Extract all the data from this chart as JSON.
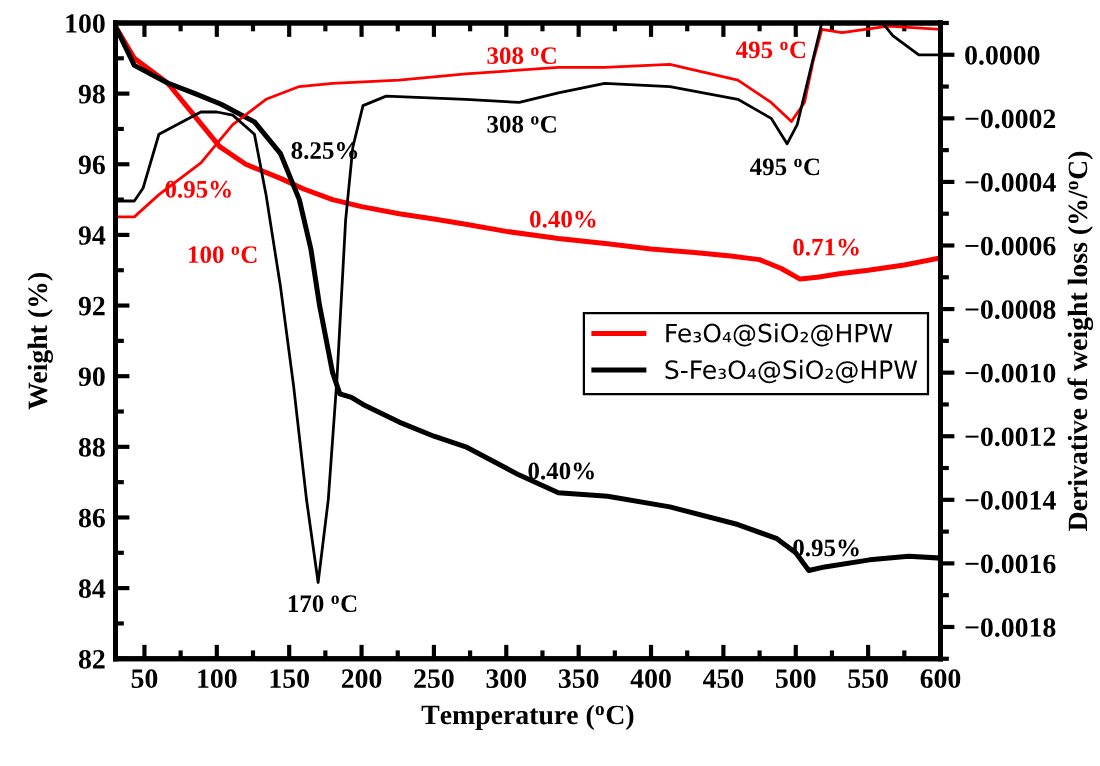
{
  "chart_data": {
    "type": "line",
    "xlabel": "Temperature ($^{o}$C)",
    "ylabel": "Weight (%)",
    "y2label": "Derivative of weight loss (%/$^{o}$C)",
    "series": [
      {
        "name": "Fe₃O₄@SiO₂@HPW",
        "color": "#ff0000",
        "x": [
          30,
          43,
          66,
          88,
          102,
          120,
          144,
          160,
          180,
          200,
          226,
          250,
          272,
          300,
          336,
          370,
          400,
          430,
          455,
          475,
          490,
          503,
          515,
          530,
          550,
          575,
          600
        ],
        "values": [
          99.9,
          99.0,
          98.3,
          97.2,
          96.5,
          96.0,
          95.6,
          95.3,
          95.0,
          94.8,
          94.6,
          94.45,
          94.3,
          94.1,
          93.9,
          93.75,
          93.6,
          93.5,
          93.4,
          93.3,
          93.05,
          92.75,
          92.8,
          92.9,
          93.0,
          93.15,
          93.35
        ]
      },
      {
        "name": "S-Fe₃O₄@SiO₂@HPW",
        "color": "#000000",
        "x": [
          30,
          43,
          66,
          85,
          103,
          126,
          144,
          157,
          165,
          171,
          180,
          185,
          193,
          201,
          226,
          250,
          272,
          309,
          336,
          370,
          413,
          460,
          487,
          500,
          509,
          520,
          551,
          578,
          600
        ],
        "values": [
          99.9,
          98.8,
          98.3,
          98.0,
          97.7,
          97.2,
          96.3,
          95.0,
          93.6,
          92.0,
          90.1,
          89.5,
          89.4,
          89.2,
          88.7,
          88.3,
          88.0,
          87.2,
          86.7,
          86.6,
          86.3,
          85.8,
          85.4,
          85.0,
          84.5,
          84.6,
          84.8,
          84.9,
          84.85
        ]
      },
      {
        "color": "#ff0000",
        "axis": "y2",
        "x": [
          30,
          43,
          60,
          89,
          111,
          134,
          157,
          180,
          226,
          272,
          336,
          368,
          413,
          460,
          483,
          497,
          506,
          512,
          518,
          532,
          564,
          600
        ],
        "values": [
          -0.00051,
          -0.00051,
          -0.00044,
          -0.00034,
          -0.00022,
          -0.00014,
          -0.0001,
          -9e-05,
          -8e-05,
          -6e-05,
          -4e-05,
          -4e-05,
          -3e-05,
          -8e-05,
          -0.00015,
          -0.00021,
          -0.00015,
          -2e-05,
          8e-05,
          7e-05,
          9e-05,
          8e-05
        ]
      },
      {
        "color": "#000000",
        "axis": "y2",
        "x": [
          30,
          43,
          49,
          60,
          89,
          100,
          111,
          126,
          134,
          144,
          153,
          162,
          170,
          177,
          183,
          189,
          194,
          201,
          217,
          272,
          309,
          336,
          368,
          413,
          460,
          483,
          494,
          501,
          510,
          518,
          560,
          567,
          585,
          600
        ],
        "values": [
          -0.00046,
          -0.00046,
          -0.00042,
          -0.00025,
          -0.00018,
          -0.00018,
          -0.00019,
          -0.00025,
          -0.00044,
          -0.00073,
          -0.00104,
          -0.0014,
          -0.00166,
          -0.0014,
          -0.00102,
          -0.00052,
          -0.00029,
          -0.00016,
          -0.00013,
          -0.00014,
          -0.00015,
          -0.00012,
          -9e-05,
          -0.0001,
          -0.00014,
          -0.0002,
          -0.00028,
          -0.00022,
          -5e-05,
          0.0001,
          0.0001,
          6e-05,
          0.0,
          0.0
        ]
      }
    ],
    "xlim": [
      30,
      600
    ],
    "xticks": [
      50,
      100,
      150,
      200,
      250,
      300,
      350,
      400,
      450,
      500,
      550,
      600
    ],
    "ylim": [
      82,
      100
    ],
    "yticks": [
      82,
      84,
      86,
      88,
      90,
      92,
      94,
      96,
      98,
      100
    ],
    "y2lim": [
      -0.0019,
      0.0001
    ],
    "y2ticks": [
      {
        "value": -0.0018,
        "label": "−0.0018"
      },
      {
        "value": -0.0016,
        "label": "−0.0016"
      },
      {
        "value": -0.0014,
        "label": "−0.0014"
      },
      {
        "value": -0.0012,
        "label": "−0.0012"
      },
      {
        "value": -0.001,
        "label": "−0.0010"
      },
      {
        "value": -0.0008,
        "label": "−0.0008"
      },
      {
        "value": -0.0006,
        "label": "−0.0006"
      },
      {
        "value": -0.0004,
        "label": "−0.0004"
      },
      {
        "value": -0.0002,
        "label": "−0.0002"
      },
      {
        "value": 0.0,
        "label": "0.0000"
      }
    ],
    "legend": "right",
    "annotations": [
      "308 $^{o}$C",
      "495 $^{o}$C",
      "0.95%",
      "100 $^{o}$C",
      "0.40%",
      "0.71%",
      "8.25%",
      "308 $^{o}$C",
      "495 $^{o}$C",
      "0.40%",
      "0.95%",
      "170 $^{o}$C"
    ]
  }
}
